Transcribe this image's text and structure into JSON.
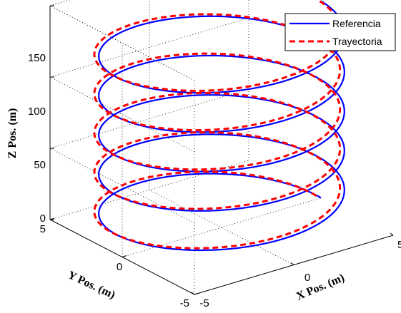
{
  "chart_data": {
    "type": "line",
    "dimensions": 3,
    "xlabel": "X Pos. (m)",
    "ylabel": "Y Pos. (m)",
    "zlabel": "Z Pos. (m)",
    "xlim": [
      -5,
      5
    ],
    "ylim": [
      -5,
      5
    ],
    "zlim": [
      0,
      150
    ],
    "x_ticks": [
      "-5",
      "0",
      "5"
    ],
    "y_ticks": [
      "-5",
      "0",
      "5"
    ],
    "z_ticks": [
      "0",
      "50",
      "100",
      "150"
    ],
    "grid": true,
    "legend_position": "top-right",
    "helix": {
      "radius": 5,
      "z_start": 0,
      "z_end": 138,
      "turns": 5
    },
    "series": [
      {
        "name": "Referencia",
        "color": "#0000ff",
        "style": "solid",
        "offset": [
          0,
          0,
          0
        ]
      },
      {
        "name": "Trayectoria",
        "color": "#ff0000",
        "style": "dashed",
        "offset": [
          -0.15,
          0.1,
          1.5
        ]
      }
    ]
  }
}
